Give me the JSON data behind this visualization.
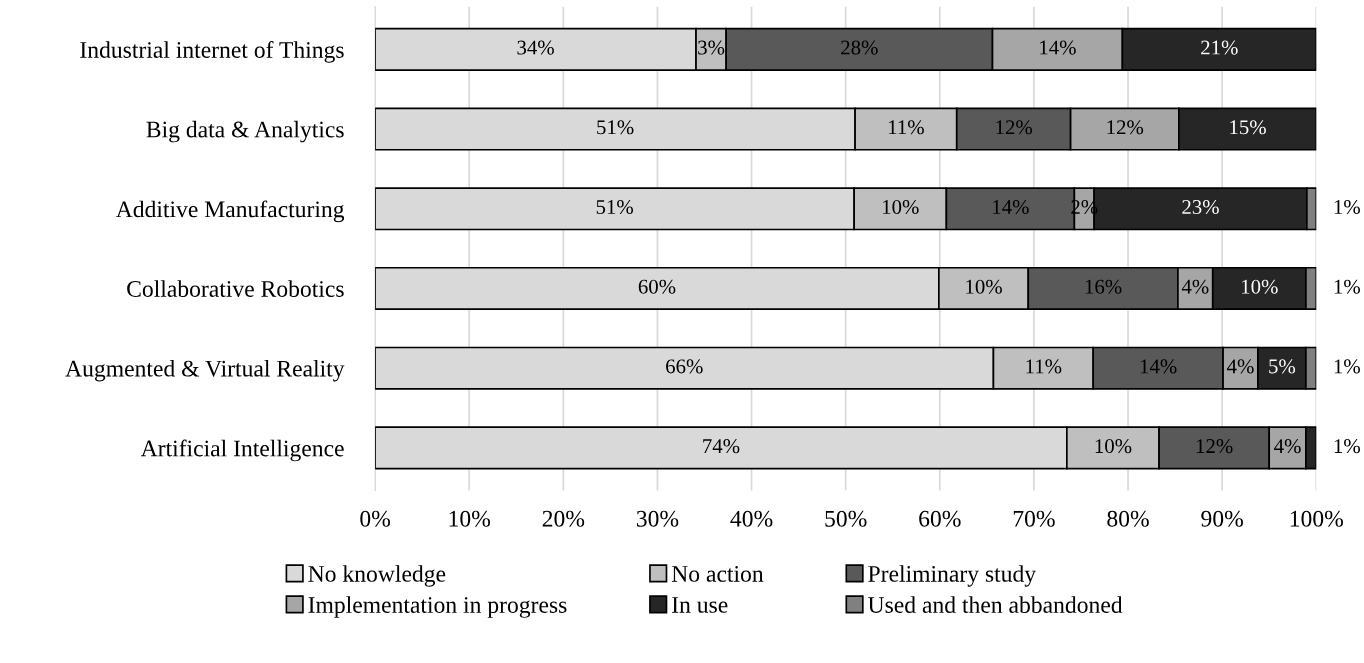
{
  "chart_data": {
    "type": "bar",
    "orientation": "horizontal",
    "stacked": true,
    "categories": [
      "Industrial internet of Things",
      "Big data & Analytics",
      "Additive Manufacturing",
      "Collaborative Robotics",
      "Augmented & Virtual Reality",
      "Artificial Intelligence"
    ],
    "series": [
      {
        "name": "No knowledge",
        "color": "#d9d9d9",
        "values": [
          34.1,
          51.0,
          50.9,
          59.9,
          65.7,
          73.5
        ],
        "value_labels": [
          "34%",
          "51%",
          "51%",
          "60%",
          "66%",
          "74%"
        ]
      },
      {
        "name": "No action",
        "color": "#bfbfbf",
        "values": [
          3.2,
          10.8,
          9.8,
          9.5,
          10.6,
          9.8
        ],
        "value_labels": [
          "3%",
          "11%",
          "10%",
          "10%",
          "11%",
          "10%"
        ]
      },
      {
        "name": "Preliminary study",
        "color": "#595959",
        "values": [
          28.3,
          12.1,
          13.6,
          15.9,
          13.8,
          11.7
        ],
        "value_labels": [
          "28%",
          "12%",
          "14%",
          "16%",
          "14%",
          "12%"
        ]
      },
      {
        "name": "Implementation in progress",
        "color": "#a6a6a6",
        "values": [
          13.8,
          11.5,
          2.1,
          3.7,
          3.7,
          3.9
        ],
        "value_labels": [
          "14%",
          "12%",
          "2%",
          "4%",
          "4%",
          "4%"
        ]
      },
      {
        "name": "In use",
        "color": "#262626",
        "values": [
          20.6,
          14.6,
          22.6,
          9.9,
          5.1,
          1.1
        ],
        "value_labels": [
          "21%",
          "15%",
          "23%",
          "10%",
          "5%",
          "1%"
        ]
      },
      {
        "name": "Used and then abbandoned",
        "color": "#808080",
        "values": [
          null,
          null,
          1.0,
          1.1,
          1.1,
          null
        ],
        "value_labels": [
          null,
          null,
          "1%",
          "1%",
          "1%",
          null
        ]
      }
    ],
    "xlim": [
      0,
      100
    ],
    "xticks": [
      {
        "value": 0,
        "label": "0%"
      },
      {
        "value": 10,
        "label": "10%"
      },
      {
        "value": 20,
        "label": "20%"
      },
      {
        "value": 30,
        "label": "30%"
      },
      {
        "value": 40,
        "label": "40%"
      },
      {
        "value": 50,
        "label": "50%"
      },
      {
        "value": 60,
        "label": "60%"
      },
      {
        "value": 70,
        "label": "70%"
      },
      {
        "value": 80,
        "label": "80%"
      },
      {
        "value": 90,
        "label": "90%"
      },
      {
        "value": 100,
        "label": "100%"
      }
    ],
    "grid": "x",
    "legend": "bottom"
  }
}
